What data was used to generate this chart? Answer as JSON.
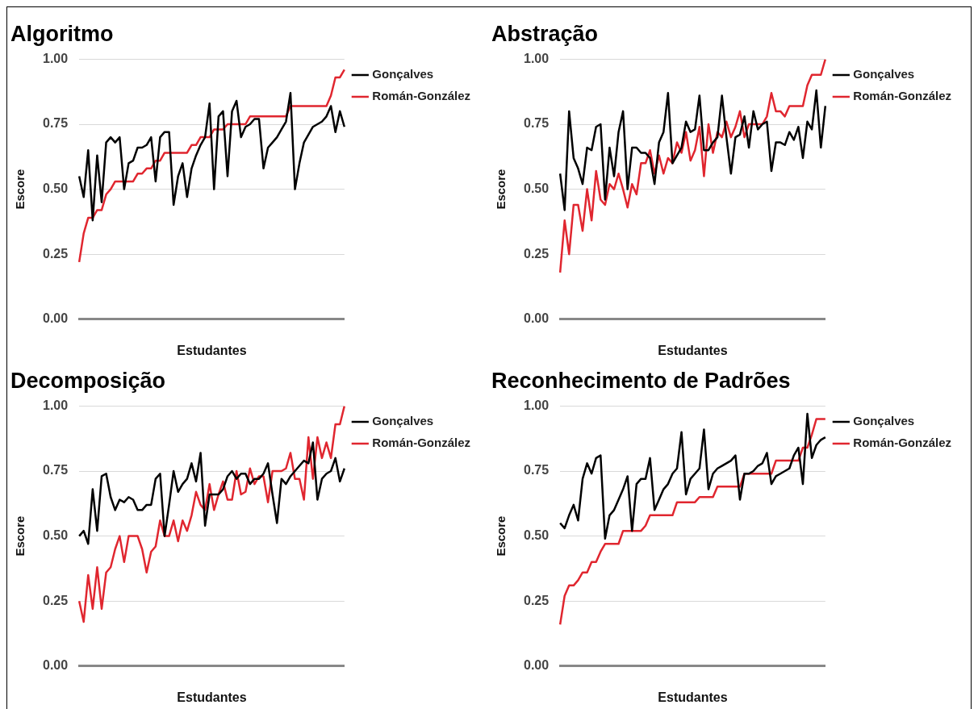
{
  "chart_data": [
    {
      "type": "line",
      "title": "Algoritmo",
      "xlabel": "Estudantes",
      "ylabel": "Escore",
      "categories": [
        null,
        null,
        null,
        null,
        null,
        null,
        null,
        null,
        null,
        null,
        null,
        null,
        null,
        null,
        null,
        null,
        null,
        null,
        null,
        null,
        null,
        null,
        null,
        null,
        null,
        null,
        null,
        null,
        null,
        null,
        null,
        null,
        null,
        null,
        null,
        null,
        null,
        null,
        null,
        null,
        null,
        null,
        null,
        null,
        null,
        null,
        null,
        null,
        null,
        null,
        null,
        null,
        null,
        null,
        null,
        null,
        null,
        null,
        null,
        null
      ],
      "ylim": [
        0,
        1
      ],
      "yticks": [
        {
          "value": 0,
          "label": "0.00"
        },
        {
          "value": 0.25,
          "label": "0.25"
        },
        {
          "value": 0.5,
          "label": "0.50"
        },
        {
          "value": 0.75,
          "label": "0.75"
        },
        {
          "value": 1,
          "label": "1.00"
        }
      ],
      "grid": "y",
      "legend": "right",
      "marker": "none",
      "tick_labels": "y",
      "series": [
        {
          "name": "Gonçalves",
          "color": "#000000",
          "values": [
            0.55,
            0.47,
            0.65,
            0.38,
            0.63,
            0.45,
            0.68,
            0.7,
            0.68,
            0.7,
            0.5,
            0.6,
            0.61,
            0.66,
            0.66,
            0.67,
            0.7,
            0.53,
            0.7,
            0.72,
            0.72,
            0.44,
            0.55,
            0.6,
            0.47,
            0.58,
            0.63,
            0.67,
            0.7,
            0.83,
            0.5,
            0.78,
            0.8,
            0.55,
            0.8,
            0.84,
            0.7,
            0.74,
            0.75,
            0.77,
            0.77,
            0.58,
            0.66,
            0.68,
            0.7,
            0.73,
            0.76,
            0.87,
            0.5,
            0.6,
            0.68,
            0.71,
            0.74,
            0.75,
            0.76,
            0.78,
            0.82,
            0.72,
            0.8,
            0.74
          ]
        },
        {
          "name": "Román-González",
          "color": "#e0262f",
          "values": [
            0.22,
            0.33,
            0.39,
            0.39,
            0.42,
            0.42,
            0.48,
            0.5,
            0.53,
            0.53,
            0.53,
            0.53,
            0.53,
            0.56,
            0.56,
            0.58,
            0.58,
            0.61,
            0.61,
            0.64,
            0.64,
            0.64,
            0.64,
            0.64,
            0.64,
            0.67,
            0.67,
            0.7,
            0.7,
            0.7,
            0.73,
            0.73,
            0.73,
            0.75,
            0.75,
            0.75,
            0.75,
            0.75,
            0.78,
            0.78,
            0.78,
            0.78,
            0.78,
            0.78,
            0.78,
            0.78,
            0.78,
            0.82,
            0.82,
            0.82,
            0.82,
            0.82,
            0.82,
            0.82,
            0.82,
            0.82,
            0.86,
            0.93,
            0.93,
            0.96
          ]
        }
      ]
    },
    {
      "type": "line",
      "title": "Abstração",
      "xlabel": "Estudantes",
      "ylabel": "Escore",
      "categories": [
        null,
        null,
        null,
        null,
        null,
        null,
        null,
        null,
        null,
        null,
        null,
        null,
        null,
        null,
        null,
        null,
        null,
        null,
        null,
        null,
        null,
        null,
        null,
        null,
        null,
        null,
        null,
        null,
        null,
        null,
        null,
        null,
        null,
        null,
        null,
        null,
        null,
        null,
        null,
        null,
        null,
        null,
        null,
        null,
        null,
        null,
        null,
        null,
        null,
        null,
        null,
        null,
        null,
        null,
        null,
        null,
        null,
        null,
        null,
        null
      ],
      "ylim": [
        0,
        1
      ],
      "yticks": [
        {
          "value": 0,
          "label": "0.00"
        },
        {
          "value": 0.25,
          "label": "0.25"
        },
        {
          "value": 0.5,
          "label": "0.50"
        },
        {
          "value": 0.75,
          "label": "0.75"
        },
        {
          "value": 1,
          "label": "1.00"
        }
      ],
      "grid": "y",
      "legend": "right",
      "marker": "none",
      "tick_labels": "y",
      "series": [
        {
          "name": "Gonçalves",
          "color": "#000000",
          "values": [
            0.56,
            0.42,
            0.8,
            0.62,
            0.58,
            0.52,
            0.66,
            0.65,
            0.74,
            0.75,
            0.46,
            0.66,
            0.55,
            0.72,
            0.8,
            0.5,
            0.66,
            0.66,
            0.64,
            0.64,
            0.62,
            0.52,
            0.68,
            0.72,
            0.87,
            0.6,
            0.63,
            0.66,
            0.76,
            0.72,
            0.73,
            0.86,
            0.65,
            0.65,
            0.68,
            0.7,
            0.86,
            0.7,
            0.56,
            0.7,
            0.71,
            0.78,
            0.66,
            0.8,
            0.73,
            0.75,
            0.76,
            0.57,
            0.68,
            0.68,
            0.67,
            0.72,
            0.69,
            0.74,
            0.62,
            0.76,
            0.73,
            0.88,
            0.66,
            0.82
          ]
        },
        {
          "name": "Román-González",
          "color": "#e0262f",
          "values": [
            0.18,
            0.38,
            0.25,
            0.44,
            0.44,
            0.34,
            0.5,
            0.38,
            0.57,
            0.46,
            0.44,
            0.52,
            0.5,
            0.56,
            0.5,
            0.43,
            0.52,
            0.48,
            0.6,
            0.6,
            0.65,
            0.56,
            0.63,
            0.56,
            0.62,
            0.6,
            0.68,
            0.64,
            0.72,
            0.61,
            0.65,
            0.74,
            0.55,
            0.75,
            0.64,
            0.72,
            0.7,
            0.76,
            0.7,
            0.74,
            0.8,
            0.7,
            0.75,
            0.75,
            0.75,
            0.75,
            0.78,
            0.87,
            0.8,
            0.8,
            0.78,
            0.82,
            0.82,
            0.82,
            0.82,
            0.9,
            0.94,
            0.94,
            0.94,
            1.0
          ]
        }
      ]
    },
    {
      "type": "line",
      "title": "Decomposição",
      "xlabel": "Estudantes",
      "ylabel": "Escore",
      "categories": [
        null,
        null,
        null,
        null,
        null,
        null,
        null,
        null,
        null,
        null,
        null,
        null,
        null,
        null,
        null,
        null,
        null,
        null,
        null,
        null,
        null,
        null,
        null,
        null,
        null,
        null,
        null,
        null,
        null,
        null,
        null,
        null,
        null,
        null,
        null,
        null,
        null,
        null,
        null,
        null,
        null,
        null,
        null,
        null,
        null,
        null,
        null,
        null,
        null,
        null,
        null,
        null,
        null,
        null,
        null,
        null,
        null,
        null,
        null,
        null
      ],
      "ylim": [
        0,
        1
      ],
      "yticks": [
        {
          "value": 0,
          "label": "0.00"
        },
        {
          "value": 0.25,
          "label": "0.25"
        },
        {
          "value": 0.5,
          "label": "0.50"
        },
        {
          "value": 0.75,
          "label": "0.75"
        },
        {
          "value": 1,
          "label": "1.00"
        }
      ],
      "grid": "y",
      "legend": "right",
      "marker": "none",
      "tick_labels": "y",
      "series": [
        {
          "name": "Gonçalves",
          "color": "#000000",
          "values": [
            0.5,
            0.52,
            0.47,
            0.68,
            0.52,
            0.73,
            0.74,
            0.65,
            0.6,
            0.64,
            0.63,
            0.65,
            0.64,
            0.6,
            0.6,
            0.62,
            0.62,
            0.72,
            0.74,
            0.5,
            0.62,
            0.75,
            0.67,
            0.7,
            0.72,
            0.78,
            0.71,
            0.82,
            0.54,
            0.66,
            0.66,
            0.66,
            0.68,
            0.73,
            0.75,
            0.72,
            0.74,
            0.74,
            0.7,
            0.72,
            0.72,
            0.74,
            0.78,
            0.66,
            0.55,
            0.72,
            0.7,
            0.73,
            0.75,
            0.77,
            0.79,
            0.78,
            0.86,
            0.64,
            0.72,
            0.74,
            0.75,
            0.8,
            0.71,
            0.76
          ]
        },
        {
          "name": "Román-González",
          "color": "#e0262f",
          "values": [
            0.25,
            0.17,
            0.35,
            0.22,
            0.38,
            0.22,
            0.36,
            0.38,
            0.45,
            0.5,
            0.4,
            0.5,
            0.5,
            0.5,
            0.45,
            0.36,
            0.44,
            0.46,
            0.56,
            0.5,
            0.5,
            0.56,
            0.48,
            0.56,
            0.52,
            0.58,
            0.67,
            0.62,
            0.6,
            0.7,
            0.6,
            0.66,
            0.71,
            0.64,
            0.64,
            0.75,
            0.66,
            0.67,
            0.76,
            0.7,
            0.73,
            0.73,
            0.63,
            0.75,
            0.75,
            0.75,
            0.76,
            0.82,
            0.72,
            0.72,
            0.64,
            0.88,
            0.72,
            0.88,
            0.8,
            0.86,
            0.8,
            0.93,
            0.93,
            1.0
          ]
        }
      ]
    },
    {
      "type": "line",
      "title": "Reconhecimento de Padrões",
      "xlabel": "Estudantes",
      "ylabel": "Escore",
      "categories": [
        null,
        null,
        null,
        null,
        null,
        null,
        null,
        null,
        null,
        null,
        null,
        null,
        null,
        null,
        null,
        null,
        null,
        null,
        null,
        null,
        null,
        null,
        null,
        null,
        null,
        null,
        null,
        null,
        null,
        null,
        null,
        null,
        null,
        null,
        null,
        null,
        null,
        null,
        null,
        null,
        null,
        null,
        null,
        null,
        null,
        null,
        null,
        null,
        null,
        null,
        null,
        null,
        null,
        null,
        null,
        null,
        null,
        null,
        null,
        null
      ],
      "ylim": [
        0,
        1
      ],
      "yticks": [
        {
          "value": 0,
          "label": "0.00"
        },
        {
          "value": 0.25,
          "label": "0.25"
        },
        {
          "value": 0.5,
          "label": "0.50"
        },
        {
          "value": 0.75,
          "label": "0.75"
        },
        {
          "value": 1,
          "label": "1.00"
        }
      ],
      "grid": "y",
      "legend": "right",
      "marker": "none",
      "tick_labels": "y",
      "series": [
        {
          "name": "Gonçalves",
          "color": "#000000",
          "values": [
            0.55,
            0.53,
            0.58,
            0.62,
            0.56,
            0.72,
            0.78,
            0.74,
            0.8,
            0.81,
            0.49,
            0.58,
            0.6,
            0.64,
            0.68,
            0.73,
            0.52,
            0.7,
            0.72,
            0.72,
            0.8,
            0.6,
            0.64,
            0.68,
            0.7,
            0.74,
            0.76,
            0.9,
            0.66,
            0.72,
            0.74,
            0.76,
            0.91,
            0.68,
            0.74,
            0.76,
            0.77,
            0.78,
            0.79,
            0.81,
            0.64,
            0.74,
            0.74,
            0.75,
            0.77,
            0.78,
            0.82,
            0.7,
            0.73,
            0.74,
            0.75,
            0.76,
            0.81,
            0.84,
            0.7,
            0.97,
            0.8,
            0.85,
            0.87,
            0.88
          ]
        },
        {
          "name": "Román-González",
          "color": "#e0262f",
          "values": [
            0.16,
            0.27,
            0.31,
            0.31,
            0.33,
            0.36,
            0.36,
            0.4,
            0.4,
            0.44,
            0.47,
            0.47,
            0.47,
            0.47,
            0.52,
            0.52,
            0.52,
            0.52,
            0.52,
            0.54,
            0.58,
            0.58,
            0.58,
            0.58,
            0.58,
            0.58,
            0.63,
            0.63,
            0.63,
            0.63,
            0.63,
            0.65,
            0.65,
            0.65,
            0.65,
            0.69,
            0.69,
            0.69,
            0.69,
            0.69,
            0.69,
            0.74,
            0.74,
            0.74,
            0.74,
            0.74,
            0.74,
            0.74,
            0.79,
            0.79,
            0.79,
            0.79,
            0.79,
            0.79,
            0.84,
            0.84,
            0.89,
            0.95,
            0.95,
            0.95
          ]
        }
      ]
    }
  ]
}
